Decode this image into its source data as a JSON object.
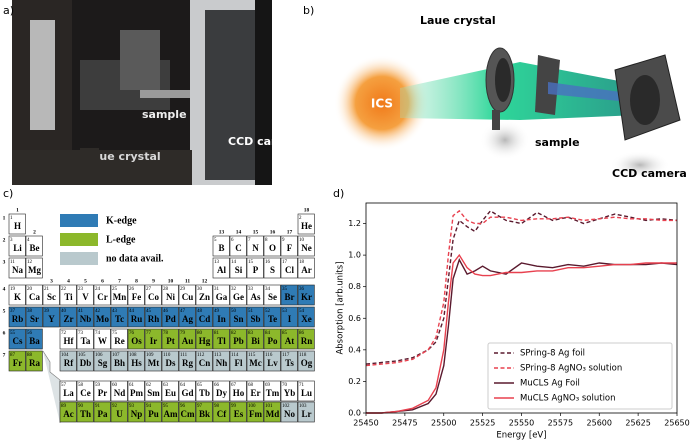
{
  "panel_a": {
    "label": "a)",
    "annotations": [
      "sample",
      "CCD camera",
      "Laue crystal"
    ]
  },
  "panel_b": {
    "label": "b)",
    "annotations": {
      "crystal": "Laue crystal",
      "source": "ICS",
      "sample": "sample",
      "detector": "CCD camera"
    }
  },
  "panel_c": {
    "label": "c)",
    "legend": [
      {
        "label": "K-edge",
        "color": "#2f7bb5"
      },
      {
        "label": "L-edge",
        "color": "#8cb82b"
      },
      {
        "label": "no data avail.",
        "color": "#b9c9cd"
      }
    ],
    "groups": [
      1,
      2,
      3,
      4,
      5,
      6,
      7,
      8,
      9,
      10,
      11,
      12,
      13,
      14,
      15,
      16,
      17,
      18
    ],
    "periods": [
      1,
      2,
      3,
      4,
      5,
      6,
      7
    ],
    "numbers": [
      1,
      2,
      3,
      4,
      5,
      6,
      7,
      8,
      9,
      10,
      11,
      12,
      13,
      14,
      15,
      16,
      17,
      18,
      19,
      20,
      21,
      22,
      23,
      24,
      25,
      26,
      27,
      28,
      29,
      30,
      31,
      32,
      33,
      34,
      35,
      36,
      37,
      38,
      39,
      40,
      41,
      42,
      43,
      44,
      45,
      46,
      47,
      48,
      49,
      50,
      51,
      52,
      53,
      54,
      55,
      56,
      57,
      58,
      59,
      60,
      61,
      62,
      63,
      64,
      65,
      66,
      67,
      68,
      69,
      70,
      71,
      72,
      73,
      74,
      75,
      76,
      77,
      78,
      79,
      80,
      81,
      82,
      83,
      84,
      85,
      86,
      87,
      88,
      89,
      90,
      91,
      92,
      93,
      94,
      95,
      96,
      97,
      98,
      99,
      100,
      101,
      102,
      103,
      104,
      105,
      106,
      107,
      108,
      109,
      110,
      111,
      112,
      113,
      114,
      115,
      116,
      117,
      118
    ],
    "symbols": [
      "H",
      "He",
      "Li",
      "Be",
      "B",
      "C",
      "N",
      "O",
      "F",
      "Ne",
      "Na",
      "Mg",
      "Al",
      "Si",
      "P",
      "S",
      "Cl",
      "Ar",
      "K",
      "Ca",
      "Sc",
      "Ti",
      "V",
      "Cr",
      "Mn",
      "Fe",
      "Co",
      "Ni",
      "Cu",
      "Zn",
      "Ga",
      "Ge",
      "As",
      "Se",
      "Br",
      "Kr",
      "Rb",
      "Sr",
      "Y",
      "Zr",
      "Nb",
      "Mo",
      "Tc",
      "Ru",
      "Rh",
      "Pd",
      "Ag",
      "Cd",
      "In",
      "Sn",
      "Sb",
      "Te",
      "I",
      "Xe",
      "Cs",
      "Ba",
      "La",
      "Ce",
      "Pr",
      "Nd",
      "Pm",
      "Sm",
      "Eu",
      "Gd",
      "Tb",
      "Dy",
      "Ho",
      "Er",
      "Tm",
      "Yb",
      "Lu",
      "Hf",
      "Ta",
      "W",
      "Re",
      "Os",
      "Ir",
      "Pt",
      "Au",
      "Hg",
      "Tl",
      "Pb",
      "Bi",
      "Po",
      "At",
      "Rn",
      "Fr",
      "Ra",
      "Ac",
      "Th",
      "Pa",
      "U",
      "Np",
      "Pu",
      "Am",
      "Cm",
      "Bk",
      "Cf",
      "Es",
      "Fm",
      "Md",
      "No",
      "Lr",
      "Rf",
      "Db",
      "Sg",
      "Bh",
      "Hs",
      "Mt",
      "Ds",
      "Rg",
      "Cn",
      "Nh",
      "Fl",
      "Mc",
      "Lv",
      "Ts",
      "Og"
    ],
    "fills": [
      "#fff",
      "#fff",
      "#fff",
      "#fff",
      "#fff",
      "#fff",
      "#fff",
      "#fff",
      "#fff",
      "#fff",
      "#fff",
      "#fff",
      "#fff",
      "#fff",
      "#fff",
      "#fff",
      "#fff",
      "#fff",
      "#fff",
      "#fff",
      "#fff",
      "#fff",
      "#fff",
      "#fff",
      "#fff",
      "#fff",
      "#fff",
      "#fff",
      "#fff",
      "#fff",
      "#fff",
      "#fff",
      "#fff",
      "#fff",
      "#2f7bb5",
      "#2f7bb5",
      "#2f7bb5",
      "#2f7bb5",
      "#2f7bb5",
      "#2f7bb5",
      "#2f7bb5",
      "#2f7bb5",
      "#2f7bb5",
      "#2f7bb5",
      "#2f7bb5",
      "#2f7bb5",
      "#2f7bb5",
      "#2f7bb5",
      "#2f7bb5",
      "#2f7bb5",
      "#2f7bb5",
      "#2f7bb5",
      "#2f7bb5",
      "#2f7bb5",
      "#2f7bb5",
      "#2f7bb5",
      "#fff",
      "#fff",
      "#fff",
      "#fff",
      "#fff",
      "#fff",
      "#fff",
      "#fff",
      "#fff",
      "#fff",
      "#fff",
      "#fff",
      "#fff",
      "#fff",
      "#fff",
      "#fff",
      "#fff",
      "#fff",
      "#fff",
      "#8cb82b",
      "#8cb82b",
      "#8cb82b",
      "#8cb82b",
      "#8cb82b",
      "#8cb82b",
      "#8cb82b",
      "#8cb82b",
      "#8cb82b",
      "#8cb82b",
      "#8cb82b",
      "#8cb82b",
      "#8cb82b",
      "#8cb82b",
      "#8cb82b",
      "#8cb82b",
      "#8cb82b",
      "#8cb82b",
      "#8cb82b",
      "#8cb82b",
      "#8cb82b",
      "#8cb82b",
      "#8cb82b",
      "#8cb82b",
      "#8cb82b",
      "#8cb82b",
      "#b9c9cd",
      "#b9c9cd",
      "#b9c9cd",
      "#b9c9cd",
      "#b9c9cd",
      "#b9c9cd",
      "#b9c9cd",
      "#b9c9cd",
      "#b9c9cd",
      "#b9c9cd",
      "#b9c9cd",
      "#b9c9cd",
      "#b9c9cd",
      "#b9c9cd",
      "#b9c9cd",
      "#b9c9cd",
      "#b9c9cd"
    ]
  },
  "panel_d": {
    "label": "d)"
  },
  "chart_data": {
    "type": "line",
    "x_label": "Energy [eV]",
    "y_label": "Absorption [arb.units]",
    "x": [
      25450,
      25460,
      25470,
      25480,
      25490,
      25495,
      25500,
      25503,
      25506,
      25510,
      25515,
      25520,
      25525,
      25530,
      25540,
      25550,
      25560,
      25570,
      25580,
      25590,
      25600,
      25610,
      25620,
      25630,
      25640,
      25650
    ],
    "series": [
      {
        "name": "SPring-8 Ag foil",
        "color": "#5a1a2e",
        "dashed": true,
        "values": [
          0.31,
          0.32,
          0.33,
          0.35,
          0.4,
          0.45,
          0.6,
          0.85,
          1.1,
          1.22,
          1.18,
          1.15,
          1.22,
          1.28,
          1.22,
          1.2,
          1.27,
          1.22,
          1.24,
          1.2,
          1.23,
          1.26,
          1.24,
          1.22,
          1.23,
          1.22
        ]
      },
      {
        "name": "SPring-8 AgNO₃ solution",
        "color": "#e8414f",
        "dashed": true,
        "values": [
          0.3,
          0.31,
          0.32,
          0.34,
          0.4,
          0.48,
          0.7,
          1.0,
          1.25,
          1.28,
          1.22,
          1.2,
          1.2,
          1.24,
          1.24,
          1.22,
          1.23,
          1.23,
          1.24,
          1.22,
          1.23,
          1.24,
          1.23,
          1.23,
          1.22,
          1.22
        ]
      },
      {
        "name": "MuCLS Ag Foil",
        "color": "#5a1a2e",
        "dashed": false,
        "values": [
          0,
          0,
          0.01,
          0.02,
          0.06,
          0.12,
          0.3,
          0.55,
          0.85,
          0.97,
          0.88,
          0.9,
          0.93,
          0.9,
          0.88,
          0.95,
          0.93,
          0.92,
          0.94,
          0.93,
          0.95,
          0.94,
          0.94,
          0.94,
          0.95,
          0.94
        ]
      },
      {
        "name": "MuCLS AgNO₃ solution",
        "color": "#e8414f",
        "dashed": false,
        "values": [
          0,
          0,
          0.01,
          0.03,
          0.08,
          0.16,
          0.4,
          0.7,
          0.95,
          1.0,
          0.92,
          0.88,
          0.87,
          0.87,
          0.89,
          0.89,
          0.9,
          0.9,
          0.92,
          0.92,
          0.93,
          0.94,
          0.94,
          0.95,
          0.95,
          0.95
        ]
      }
    ],
    "xlim": [
      25450,
      25650
    ],
    "ylim": [
      0,
      1.33
    ],
    "xticks": [
      25450,
      25475,
      25500,
      25525,
      25550,
      25575,
      25600,
      25625,
      25650
    ],
    "yticks": [
      {
        "value": 0,
        "label": "0.0"
      },
      0.2,
      0.4,
      0.6,
      0.8,
      {
        "value": 1,
        "label": "1.0"
      },
      1.2
    ],
    "legend": "lower right"
  }
}
